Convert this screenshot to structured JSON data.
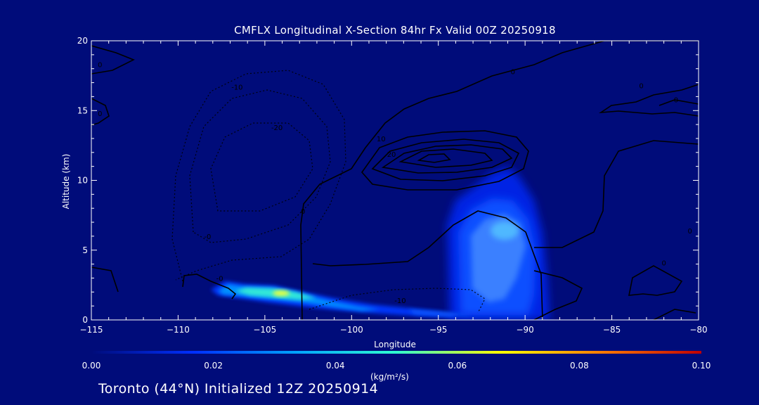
{
  "chart_data": {
    "type": "heatmap",
    "title": "CMFLX Longitudinal X-Section 84hr  Fx Valid 00Z 20250918",
    "xlabel": "Longitude",
    "ylabel": "Altitude (km)",
    "xlim": [
      -115,
      -80
    ],
    "ylim": [
      0,
      20
    ],
    "x_ticks": [
      -115,
      -110,
      -105,
      -100,
      -95,
      -90,
      -85,
      -80
    ],
    "x_tick_labels": [
      "−115",
      "−110",
      "−105",
      "−100",
      "−95",
      "−90",
      "−85",
      "−80"
    ],
    "y_ticks": [
      0,
      5,
      10,
      15,
      20
    ],
    "y_tick_labels": [
      "0",
      "5",
      "10",
      "15",
      "20"
    ],
    "colorbar": {
      "min": 0.0,
      "max": 0.1,
      "ticks": [
        0.0,
        0.02,
        0.04,
        0.06,
        0.08,
        0.1
      ],
      "tick_labels": [
        "0.00",
        "0.02",
        "0.04",
        "0.06",
        "0.08",
        "0.10"
      ],
      "unit": "(kg/m²/s)",
      "colors": [
        "#000c7a",
        "#0030ff",
        "#00a0ff",
        "#30ffd0",
        "#ffff00",
        "#ff8000",
        "#c00000"
      ]
    },
    "flux_regions": [
      {
        "name": "low-level flux band",
        "lon_range": [
          -108,
          -94
        ],
        "alt_range": [
          0.3,
          2.6
        ],
        "peak_value": 0.045,
        "peak_lon": -104,
        "peak_alt": 1.8
      },
      {
        "name": "convective column",
        "lon_range": [
          -95,
          -90.5
        ],
        "alt_range": [
          0.2,
          11
        ],
        "peak_value": 0.035,
        "peak_lon": -92.3,
        "peak_alt": 6.5
      }
    ],
    "contour_labels": [
      {
        "text": "0",
        "lon": -114.5,
        "alt": 18.1
      },
      {
        "text": "0",
        "lon": -114.5,
        "alt": 14.6
      },
      {
        "text": "0",
        "lon": -90.7,
        "alt": 17.6
      },
      {
        "text": "0",
        "lon": -83.3,
        "alt": 16.6
      },
      {
        "text": "0",
        "lon": -81.3,
        "alt": 15.6
      },
      {
        "text": "0",
        "lon": -80.5,
        "alt": 6.2
      },
      {
        "text": "0",
        "lon": -82.0,
        "alt": 3.9
      },
      {
        "text": "0",
        "lon": -102.8,
        "alt": 7.6
      },
      {
        "text": "10",
        "lon": -98.3,
        "alt": 12.8
      },
      {
        "text": "20",
        "lon": -97.7,
        "alt": 11.7
      },
      {
        "text": "-10",
        "lon": -106.6,
        "alt": 16.5
      },
      {
        "text": "-20",
        "lon": -104.3,
        "alt": 13.6
      },
      {
        "text": "-0",
        "lon": -108.3,
        "alt": 5.8
      },
      {
        "text": "-0",
        "lon": -107.6,
        "alt": 2.8
      },
      {
        "text": "-10",
        "lon": -97.2,
        "alt": 1.2
      }
    ]
  },
  "footer": "Toronto (44°N) Initialized 12Z 20250914"
}
